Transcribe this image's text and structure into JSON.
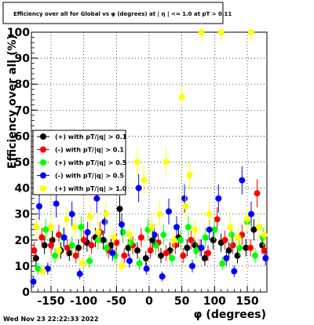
{
  "chart_data": {
    "type": "scatter",
    "title": "Efficiency over all for Global vs φ (degrees) at | η | <= 1.0 at pT > 0.11",
    "xlabel": "φ (degrees)",
    "ylabel": "Efficiency over all (%)",
    "xlim": [
      -180,
      180
    ],
    "ylim": [
      0,
      100
    ],
    "xticks": [
      -150,
      -100,
      -50,
      0,
      50,
      100,
      150
    ],
    "yticks": [
      0,
      10,
      20,
      30,
      40,
      50,
      60,
      70,
      80,
      90,
      100
    ],
    "grid": true,
    "legend_position": "left",
    "timestamp": "Wed Nov 23 22:22:33 2022",
    "series": [
      {
        "name": "(+) with pT/|q| > 0.1",
        "color": "#000000",
        "points": [
          [
            -173,
            13
          ],
          [
            -160,
            18
          ],
          [
            -148,
            20
          ],
          [
            -135,
            16
          ],
          [
            -122,
            15
          ],
          [
            -108,
            17
          ],
          [
            -95,
            19
          ],
          [
            -82,
            21
          ],
          [
            -70,
            20
          ],
          [
            -58,
            18
          ],
          [
            -45,
            32
          ],
          [
            -32,
            17
          ],
          [
            -18,
            16
          ],
          [
            -5,
            13
          ],
          [
            5,
            20
          ],
          [
            18,
            14
          ],
          [
            32,
            16
          ],
          [
            45,
            21
          ],
          [
            58,
            17
          ],
          [
            70,
            18
          ],
          [
            85,
            13
          ],
          [
            98,
            20
          ],
          [
            110,
            19
          ],
          [
            122,
            16
          ],
          [
            135,
            14
          ],
          [
            148,
            17
          ],
          [
            160,
            24
          ],
          [
            173,
            18
          ]
        ]
      },
      {
        "name": "(-) with pT/|q| > 0.1",
        "color": "#ff0000",
        "points": [
          [
            -176,
            16
          ],
          [
            -164,
            21
          ],
          [
            -150,
            18
          ],
          [
            -138,
            22
          ],
          [
            -125,
            17
          ],
          [
            -112,
            14
          ],
          [
            -100,
            20
          ],
          [
            -88,
            18
          ],
          [
            -75,
            23
          ],
          [
            -62,
            16
          ],
          [
            -50,
            19
          ],
          [
            -38,
            14
          ],
          [
            -25,
            18
          ],
          [
            -12,
            21
          ],
          [
            2,
            16
          ],
          [
            14,
            19
          ],
          [
            26,
            15
          ],
          [
            40,
            18
          ],
          [
            52,
            14
          ],
          [
            64,
            20
          ],
          [
            78,
            17
          ],
          [
            90,
            15
          ],
          [
            104,
            28
          ],
          [
            116,
            20
          ],
          [
            128,
            18
          ],
          [
            142,
            22
          ],
          [
            155,
            17
          ],
          [
            165,
            38
          ],
          [
            176,
            16
          ]
        ]
      },
      {
        "name": "(+) with pT/|q| > 0.5",
        "color": "#00ff00",
        "points": [
          [
            -170,
            9
          ],
          [
            -158,
            24
          ],
          [
            -144,
            14
          ],
          [
            -131,
            21
          ],
          [
            -118,
            18
          ],
          [
            -104,
            25
          ],
          [
            -91,
            12
          ],
          [
            -78,
            20
          ],
          [
            -65,
            17
          ],
          [
            -52,
            14
          ],
          [
            -40,
            23
          ],
          [
            -28,
            19
          ],
          [
            -15,
            11
          ],
          [
            -2,
            24
          ],
          [
            10,
            18
          ],
          [
            22,
            22
          ],
          [
            35,
            13
          ],
          [
            48,
            20
          ],
          [
            60,
            25
          ],
          [
            72,
            16
          ],
          [
            86,
            21
          ],
          [
            100,
            24
          ],
          [
            112,
            11
          ],
          [
            126,
            22
          ],
          [
            138,
            17
          ],
          [
            150,
            27
          ],
          [
            162,
            14
          ],
          [
            174,
            21
          ]
        ]
      },
      {
        "name": "(-) with pT/|q| > 0.5",
        "color": "#0000ff",
        "points": [
          [
            -177,
            4
          ],
          [
            -168,
            33
          ],
          [
            -155,
            9
          ],
          [
            -142,
            34
          ],
          [
            -130,
            21
          ],
          [
            -118,
            30
          ],
          [
            -106,
            7
          ],
          [
            -94,
            23
          ],
          [
            -80,
            36
          ],
          [
            -68,
            27
          ],
          [
            -56,
            15
          ],
          [
            -42,
            26
          ],
          [
            -30,
            12
          ],
          [
            -16,
            40
          ],
          [
            -4,
            9
          ],
          [
            8,
            22
          ],
          [
            20,
            6
          ],
          [
            30,
            31
          ],
          [
            42,
            25
          ],
          [
            54,
            36
          ],
          [
            66,
            10
          ],
          [
            80,
            17
          ],
          [
            92,
            24
          ],
          [
            106,
            36
          ],
          [
            118,
            13
          ],
          [
            130,
            8
          ],
          [
            142,
            43
          ],
          [
            156,
            30
          ],
          [
            168,
            25
          ],
          [
            178,
            13
          ]
        ]
      },
      {
        "name": "(+) with pT/|q| > 1.0",
        "color": "#ffff00",
        "points": [
          [
            -172,
            25
          ],
          [
            -162,
            8
          ],
          [
            -150,
            25
          ],
          [
            -138,
            16
          ],
          [
            -126,
            28
          ],
          [
            -114,
            25
          ],
          [
            -102,
            11
          ],
          [
            -90,
            29
          ],
          [
            -78,
            23
          ],
          [
            -66,
            30
          ],
          [
            -54,
            21
          ],
          [
            -42,
            10
          ],
          [
            -30,
            22
          ],
          [
            -18,
            50
          ],
          [
            -8,
            43
          ],
          [
            4,
            25
          ],
          [
            16,
            30
          ],
          [
            26,
            50
          ],
          [
            38,
            20
          ],
          [
            50,
            75
          ],
          [
            56,
            33
          ],
          [
            62,
            45
          ],
          [
            70,
            24
          ],
          [
            80,
            100
          ],
          [
            92,
            30
          ],
          [
            110,
            100
          ],
          [
            124,
            25
          ],
          [
            136,
            21
          ],
          [
            150,
            28
          ],
          [
            156,
            100
          ],
          [
            168,
            25
          ],
          [
            176,
            22
          ]
        ]
      }
    ]
  }
}
